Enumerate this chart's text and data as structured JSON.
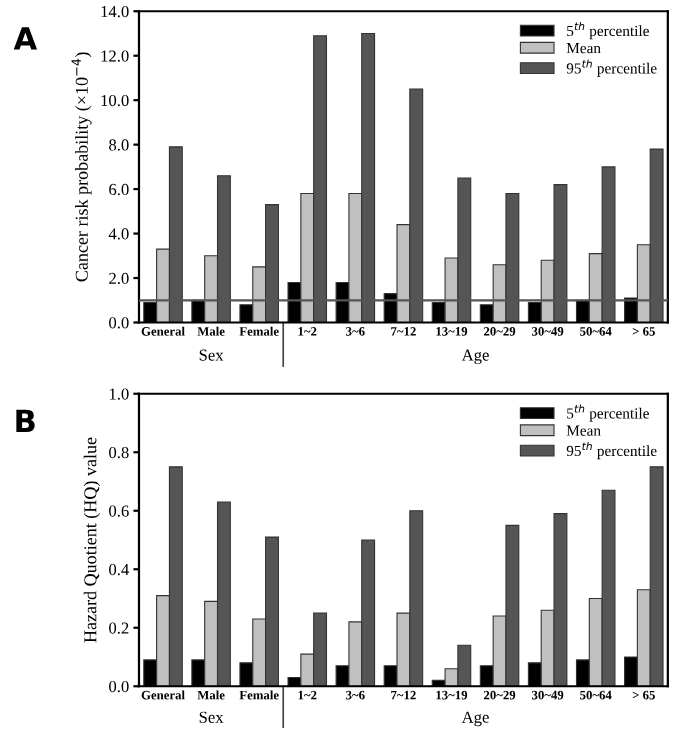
{
  "chart_data": [
    {
      "type": "bar",
      "title": "A",
      "ylabel": "Cancer risk probability (×10$^{−4}$)",
      "categories": [
        "General",
        "Male",
        "Female",
        "1~2",
        "3~6",
        "7~12",
        "13~19",
        "20~29",
        "30~49",
        "50~64",
        "> 65"
      ],
      "series": [
        {
          "name": "5$^{th}$ percentile",
          "color": "#000000",
          "values": [
            0.9,
            1.0,
            0.8,
            1.8,
            1.8,
            1.3,
            0.9,
            0.8,
            0.9,
            1.0,
            1.1
          ]
        },
        {
          "name": "Mean",
          "color": "#c0c0c0",
          "values": [
            3.3,
            3.0,
            2.5,
            5.8,
            5.8,
            4.4,
            2.9,
            2.6,
            2.8,
            3.1,
            3.5
          ]
        },
        {
          "name": "95$^{th}$ percentile",
          "color": "#555555",
          "values": [
            7.9,
            6.6,
            5.3,
            12.9,
            13.0,
            10.5,
            6.5,
            5.8,
            6.2,
            7.0,
            7.8
          ]
        }
      ],
      "ylim": [
        0,
        14
      ],
      "yticks": [
        {
          "value": 0,
          "label": "0.0"
        },
        {
          "value": 2,
          "label": "2.0"
        },
        {
          "value": 4,
          "label": "4.0"
        },
        {
          "value": 6,
          "label": "6.0"
        },
        {
          "value": 8,
          "label": "8.0"
        },
        {
          "value": 10,
          "label": "10.0"
        },
        {
          "value": 12,
          "label": "12.0"
        },
        {
          "value": 14,
          "label": "14.0"
        }
      ],
      "ref_lines": [
        {
          "axis": "y",
          "value": 1.0,
          "color": "#555555"
        }
      ],
      "annotations": [
        "Sex",
        "Age"
      ],
      "legend": "top right",
      "grid": false
    },
    {
      "type": "bar",
      "title": "B",
      "ylabel": "Hazard Quotient (HQ) value",
      "categories": [
        "General",
        "Male",
        "Female",
        "1~2",
        "3~6",
        "7~12",
        "13~19",
        "20~29",
        "30~49",
        "50~64",
        "> 65"
      ],
      "series": [
        {
          "name": "5$^{th}$ percentile",
          "color": "#000000",
          "values": [
            0.09,
            0.09,
            0.08,
            0.03,
            0.07,
            0.07,
            0.02,
            0.07,
            0.08,
            0.09,
            0.1
          ]
        },
        {
          "name": "Mean",
          "color": "#c0c0c0",
          "values": [
            0.31,
            0.29,
            0.23,
            0.11,
            0.22,
            0.25,
            0.06,
            0.24,
            0.26,
            0.3,
            0.33
          ]
        },
        {
          "name": "95$^{th}$ percentile",
          "color": "#555555",
          "values": [
            0.75,
            0.63,
            0.51,
            0.25,
            0.5,
            0.6,
            0.14,
            0.55,
            0.59,
            0.67,
            0.75
          ]
        }
      ],
      "ylim": [
        0,
        1.0
      ],
      "yticks": [
        {
          "value": 0,
          "label": "0.0"
        },
        {
          "value": 0.2,
          "label": "0.2"
        },
        {
          "value": 0.4,
          "label": "0.4"
        },
        {
          "value": 0.6,
          "label": "0.6"
        },
        {
          "value": 0.8,
          "label": "0.8"
        },
        {
          "value": 1.0,
          "label": "1.0"
        }
      ],
      "annotations": [
        "Sex",
        "Age"
      ],
      "legend": "top right",
      "grid": false
    }
  ]
}
